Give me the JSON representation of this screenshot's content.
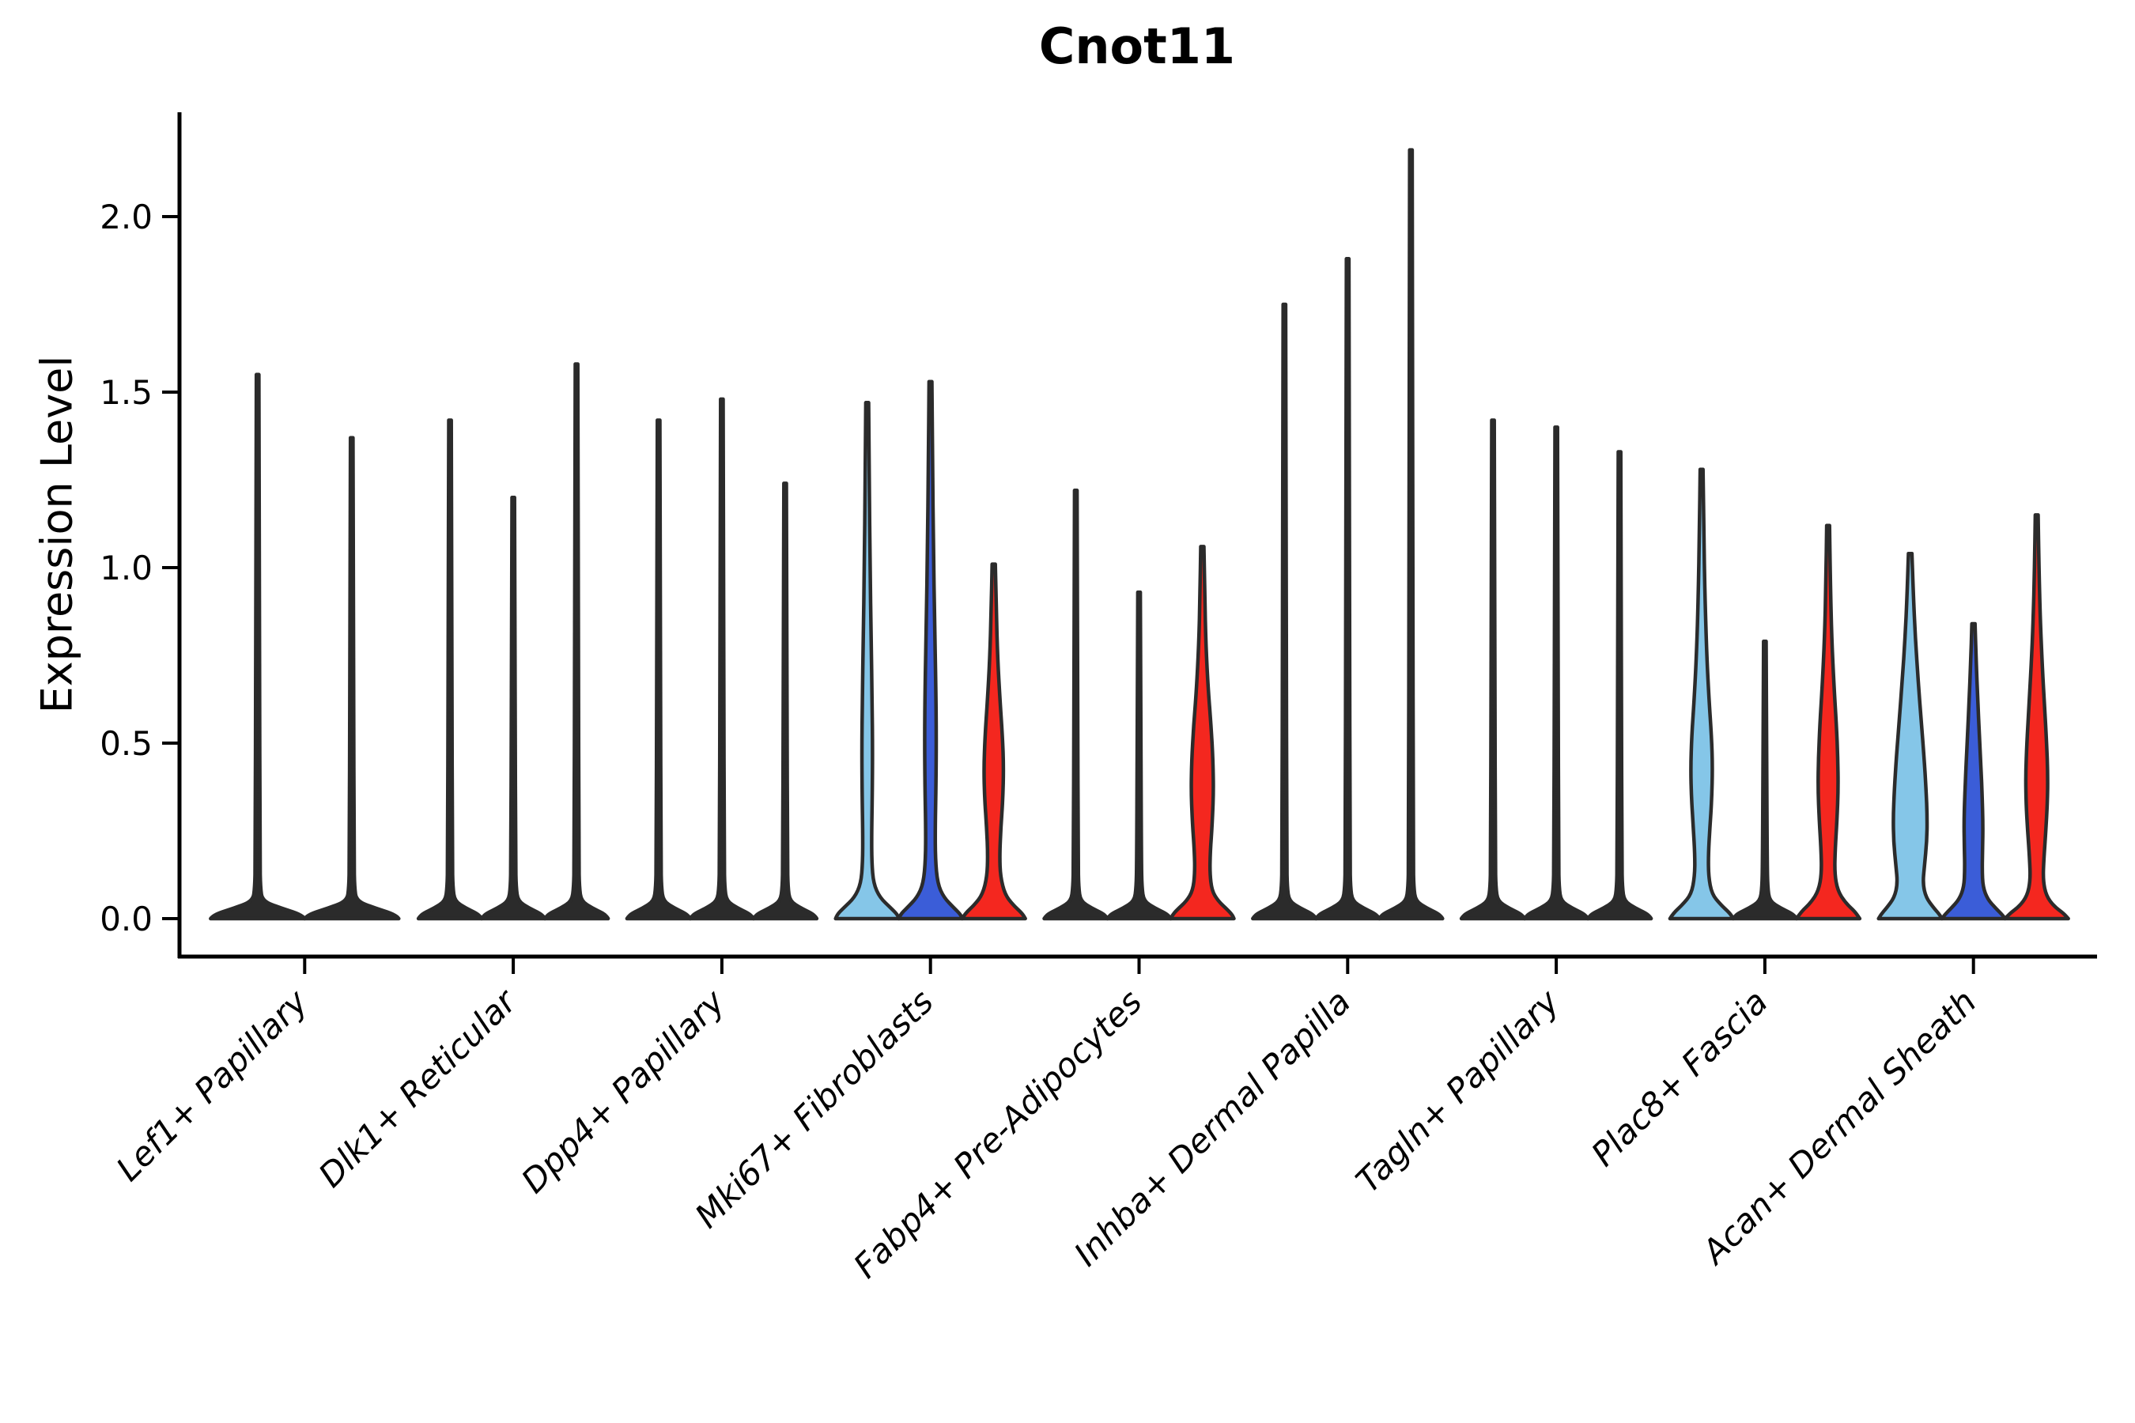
{
  "title": "Cnot11",
  "axes": {
    "ylabel": "Expression Level",
    "ytick_labels": [
      "0.0",
      "0.5",
      "1.0",
      "1.5",
      "2.0"
    ]
  },
  "chart_data": {
    "type": "violin",
    "title": "Cnot11",
    "xlabel": "",
    "ylabel": "Expression Level",
    "ylim": [
      0,
      2.3
    ],
    "yticks": [
      0,
      0.5,
      1.0,
      1.5,
      2.0
    ],
    "grid": false,
    "legend": false,
    "categories": [
      "Lef1+ Papillary",
      "Dlk1+ Reticular",
      "Dpp4+ Papillary",
      "Mki67+ Fibroblasts",
      "Fabp4+ Pre-Adipocytes",
      "Inhba+ Dermal Papilla",
      "Tagln+ Papillary",
      "Plac8+ Fascia",
      "Acan+ Dermal Sheath"
    ],
    "palette": {
      "lightblue": "#85C6E8",
      "blue": "#3B5DD8",
      "red": "#F4271F",
      "dark": "#2B2B2B"
    },
    "groups": [
      {
        "label": "Lef1+ Papillary",
        "violins": [
          {
            "color": "dark",
            "max": 1.55
          },
          {
            "color": "dark",
            "max": 1.37
          }
        ]
      },
      {
        "label": "Dlk1+ Reticular",
        "violins": [
          {
            "color": "dark",
            "max": 1.42
          },
          {
            "color": "dark",
            "max": 1.2
          },
          {
            "color": "dark",
            "max": 1.58
          }
        ]
      },
      {
        "label": "Dpp4+ Papillary",
        "violins": [
          {
            "color": "dark",
            "max": 1.42
          },
          {
            "color": "dark",
            "max": 1.48
          },
          {
            "color": "dark",
            "max": 1.24
          }
        ]
      },
      {
        "label": "Mki67+ Fibroblasts",
        "violins": [
          {
            "color": "lightblue",
            "max": 1.47,
            "profile": [
              [
                1.47,
                1.8
              ],
              [
                1.25,
                2.6
              ],
              [
                1.0,
                3.6
              ],
              [
                0.8,
                5.0
              ],
              [
                0.62,
                6.2
              ],
              [
                0.48,
                6.8
              ],
              [
                0.35,
                6.4
              ],
              [
                0.24,
                5.6
              ],
              [
                0.16,
                5.8
              ],
              [
                0.1,
                8
              ],
              [
                0.06,
                16
              ],
              [
                0.03,
                30
              ],
              [
                0.012,
                38
              ],
              [
                0,
                40
              ]
            ]
          },
          {
            "color": "blue",
            "max": 1.53,
            "profile": [
              [
                1.53,
                1.8
              ],
              [
                1.3,
                2.6
              ],
              [
                1.05,
                3.8
              ],
              [
                0.85,
                5.2
              ],
              [
                0.66,
                6.8
              ],
              [
                0.52,
                7.4
              ],
              [
                0.38,
                7.0
              ],
              [
                0.26,
                6.0
              ],
              [
                0.17,
                6.2
              ],
              [
                0.1,
                9
              ],
              [
                0.06,
                17
              ],
              [
                0.03,
                30
              ],
              [
                0.012,
                38
              ],
              [
                0,
                40
              ]
            ]
          },
          {
            "color": "red",
            "max": 1.01,
            "profile": [
              [
                1.01,
                2.0
              ],
              [
                0.88,
                3.2
              ],
              [
                0.74,
                5.0
              ],
              [
                0.62,
                8.0
              ],
              [
                0.52,
                11.0
              ],
              [
                0.43,
                12.5
              ],
              [
                0.34,
                11.5
              ],
              [
                0.26,
                9.0
              ],
              [
                0.18,
                7.5
              ],
              [
                0.12,
                8.5
              ],
              [
                0.07,
                14
              ],
              [
                0.04,
                24
              ],
              [
                0.015,
                36
              ],
              [
                0,
                40
              ]
            ]
          }
        ]
      },
      {
        "label": "Fabp4+ Pre-Adipocytes",
        "violins": [
          {
            "color": "dark",
            "max": 1.22
          },
          {
            "color": "dark",
            "max": 0.93
          },
          {
            "color": "red",
            "max": 1.06,
            "profile": [
              [
                1.06,
                2.0
              ],
              [
                0.92,
                3.0
              ],
              [
                0.78,
                4.5
              ],
              [
                0.65,
                7.5
              ],
              [
                0.55,
                11
              ],
              [
                0.45,
                13.5
              ],
              [
                0.36,
                14.2
              ],
              [
                0.27,
                12.5
              ],
              [
                0.19,
                10
              ],
              [
                0.13,
                9.5
              ],
              [
                0.08,
                12
              ],
              [
                0.05,
                20
              ],
              [
                0.025,
                32
              ],
              [
                0.01,
                38
              ],
              [
                0,
                40
              ]
            ]
          }
        ]
      },
      {
        "label": "Inhba+ Dermal Papilla",
        "violins": [
          {
            "color": "dark",
            "max": 1.75
          },
          {
            "color": "dark",
            "max": 1.88
          },
          {
            "color": "dark",
            "max": 2.19
          }
        ]
      },
      {
        "label": "Tagln+ Papillary",
        "violins": [
          {
            "color": "dark",
            "max": 1.42
          },
          {
            "color": "dark",
            "max": 1.4
          },
          {
            "color": "dark",
            "max": 1.33
          }
        ]
      },
      {
        "label": "Plac8+ Fascia",
        "violins": [
          {
            "color": "lightblue",
            "max": 1.28,
            "profile": [
              [
                1.28,
                1.8
              ],
              [
                1.1,
                2.8
              ],
              [
                0.92,
                4.2
              ],
              [
                0.75,
                6.5
              ],
              [
                0.62,
                9.5
              ],
              [
                0.52,
                12.5
              ],
              [
                0.43,
                13.8
              ],
              [
                0.34,
                12.8
              ],
              [
                0.26,
                10.5
              ],
              [
                0.18,
                8.5
              ],
              [
                0.12,
                8.8
              ],
              [
                0.07,
                13
              ],
              [
                0.04,
                24
              ],
              [
                0.015,
                36
              ],
              [
                0,
                40
              ]
            ]
          },
          {
            "color": "dark",
            "max": 0.79
          },
          {
            "color": "red",
            "max": 1.12,
            "profile": [
              [
                1.12,
                1.8
              ],
              [
                0.96,
                2.8
              ],
              [
                0.8,
                4.5
              ],
              [
                0.66,
                7.5
              ],
              [
                0.55,
                10.5
              ],
              [
                0.46,
                12.2
              ],
              [
                0.37,
                12.8
              ],
              [
                0.28,
                11.2
              ],
              [
                0.2,
                9.0
              ],
              [
                0.13,
                8.2
              ],
              [
                0.08,
                12
              ],
              [
                0.045,
                22
              ],
              [
                0.02,
                34
              ],
              [
                0,
                40
              ]
            ]
          }
        ]
      },
      {
        "label": "Acan+ Dermal Sheath",
        "violins": [
          {
            "color": "lightblue",
            "max": 1.04,
            "profile": [
              [
                1.04,
                2.2
              ],
              [
                0.92,
                4.0
              ],
              [
                0.8,
                6.5
              ],
              [
                0.68,
                10
              ],
              [
                0.56,
                14
              ],
              [
                0.46,
                17.5
              ],
              [
                0.37,
                20
              ],
              [
                0.29,
                21.5
              ],
              [
                0.22,
                21
              ],
              [
                0.15,
                18
              ],
              [
                0.1,
                16
              ],
              [
                0.06,
                20
              ],
              [
                0.03,
                30
              ],
              [
                0.012,
                37
              ],
              [
                0,
                40
              ]
            ]
          },
          {
            "color": "blue",
            "max": 0.84,
            "profile": [
              [
                0.84,
                2.0
              ],
              [
                0.73,
                3.5
              ],
              [
                0.62,
                5.5
              ],
              [
                0.52,
                7.5
              ],
              [
                0.43,
                9.5
              ],
              [
                0.35,
                11
              ],
              [
                0.27,
                12
              ],
              [
                0.2,
                11.5
              ],
              [
                0.14,
                11
              ],
              [
                0.09,
                12
              ],
              [
                0.055,
                18
              ],
              [
                0.03,
                28
              ],
              [
                0.012,
                36
              ],
              [
                0,
                40
              ]
            ]
          },
          {
            "color": "red",
            "max": 1.15,
            "profile": [
              [
                1.15,
                1.8
              ],
              [
                1.0,
                2.8
              ],
              [
                0.85,
                4.5
              ],
              [
                0.72,
                7
              ],
              [
                0.6,
                10
              ],
              [
                0.5,
                12.5
              ],
              [
                0.41,
                14
              ],
              [
                0.33,
                13.5
              ],
              [
                0.25,
                11.5
              ],
              [
                0.17,
                9
              ],
              [
                0.11,
                8
              ],
              [
                0.065,
                12
              ],
              [
                0.035,
                22
              ],
              [
                0.015,
                34
              ],
              [
                0,
                40
              ]
            ]
          }
        ]
      }
    ]
  }
}
